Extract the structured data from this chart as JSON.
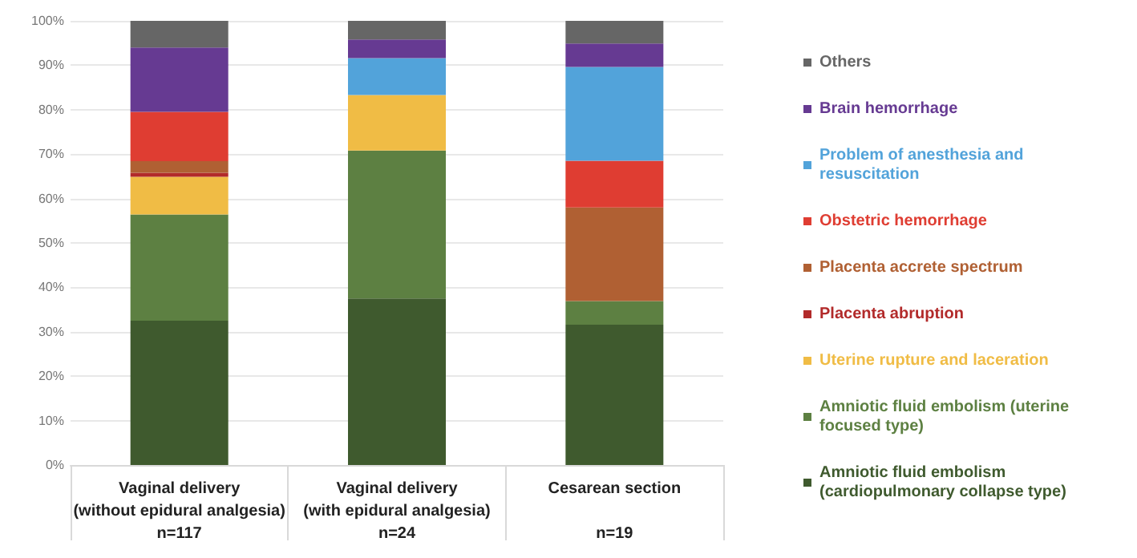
{
  "chart_data": {
    "type": "bar",
    "stacked": true,
    "categories": [
      "Vaginal delivery\n(without epidural analgesia)\nn=117",
      "Vaginal delivery\n(with epidural analgesia)\nn=24",
      "Cesarean section\n\nn=19"
    ],
    "series": [
      {
        "name": "Amniotic fluid embolism (cardiopulmonary collapse type)",
        "color": "#3f5a2e",
        "values": [
          32.5,
          37.5,
          31.6
        ]
      },
      {
        "name": "Amniotic fluid embolism (uterine focused type)",
        "color": "#5d8042",
        "values": [
          23.9,
          33.3,
          5.3
        ]
      },
      {
        "name": "Uterine rupture and laceration",
        "color": "#f0bc45",
        "values": [
          8.5,
          12.5,
          0
        ]
      },
      {
        "name": "Placenta abruption",
        "color": "#b22a2a",
        "values": [
          0.9,
          0,
          0
        ]
      },
      {
        "name": "Placenta accrete spectrum",
        "color": "#b06033",
        "values": [
          2.6,
          0,
          21.1
        ]
      },
      {
        "name": "Obstetric hemorrhage",
        "color": "#df3d32",
        "values": [
          11.1,
          0,
          10.5
        ]
      },
      {
        "name": "Problem of anesthesia and resuscitation",
        "color": "#52a3da",
        "values": [
          0,
          8.3,
          21.1
        ]
      },
      {
        "name": "Brain hemorrhage",
        "color": "#663a92",
        "values": [
          14.5,
          4.2,
          5.3
        ]
      },
      {
        "name": "Others",
        "color": "#666666",
        "values": [
          6.0,
          4.2,
          5.3
        ]
      }
    ],
    "ylim": [
      0,
      100
    ],
    "yticks": [
      {
        "value": 0,
        "label": "0%"
      },
      {
        "value": 10,
        "label": "10%"
      },
      {
        "value": 20,
        "label": "20%"
      },
      {
        "value": 30,
        "label": "30%"
      },
      {
        "value": 40,
        "label": "40%"
      },
      {
        "value": 50,
        "label": "50%"
      },
      {
        "value": 60,
        "label": "60%"
      },
      {
        "value": 70,
        "label": "70%"
      },
      {
        "value": 80,
        "label": "80%"
      },
      {
        "value": 90,
        "label": "90%"
      },
      {
        "value": 100,
        "label": "100%"
      }
    ],
    "grid": "y",
    "legend": "right"
  }
}
